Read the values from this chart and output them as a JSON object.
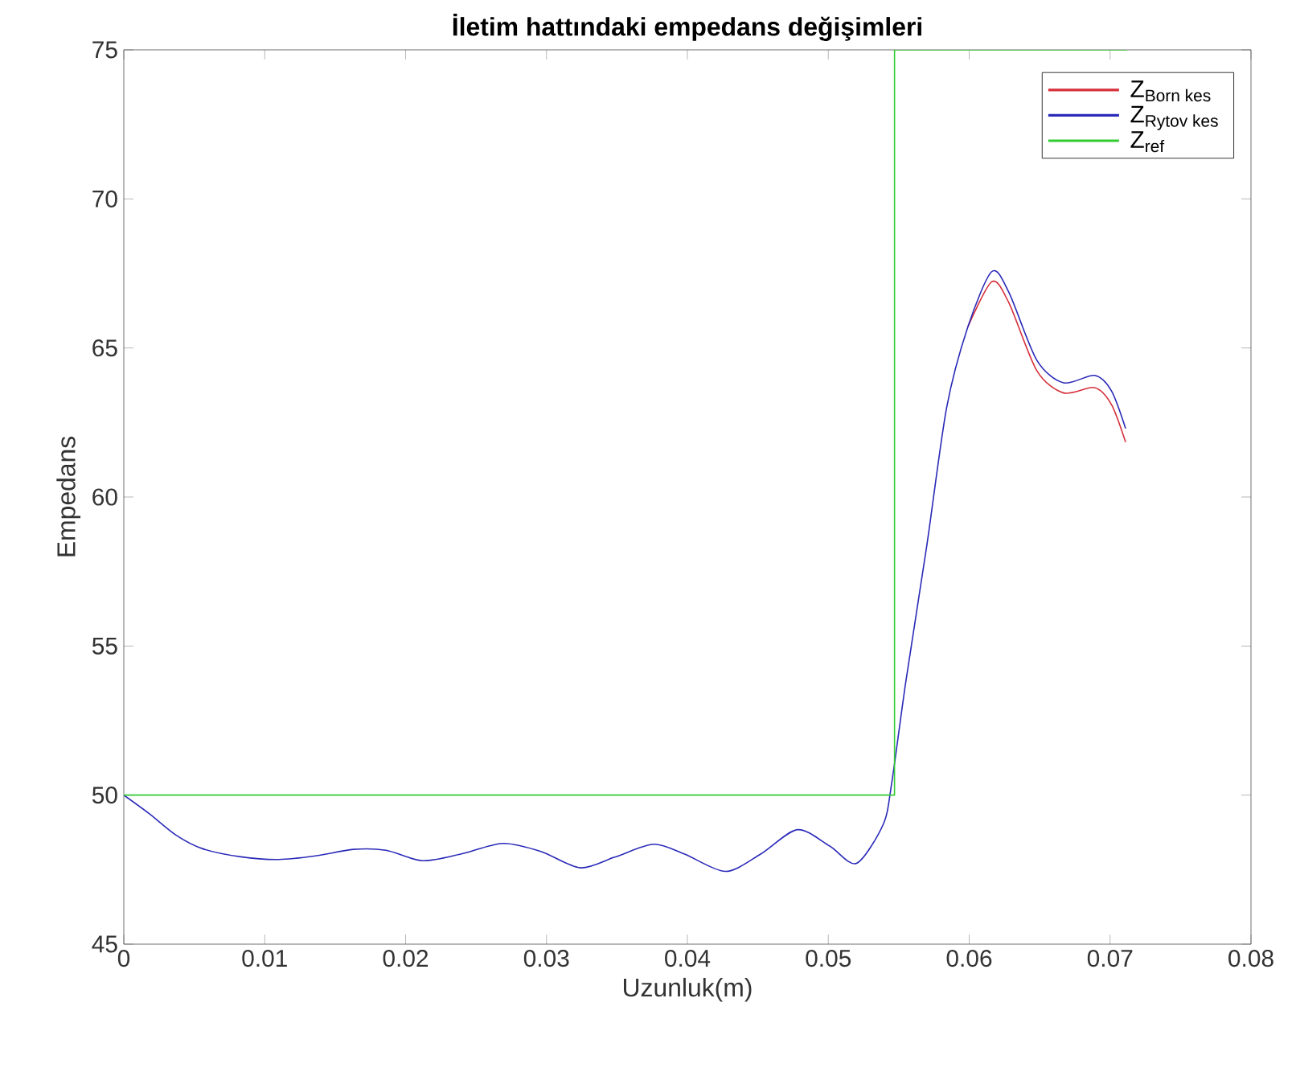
{
  "chart_data": {
    "type": "line",
    "title": "İletim hattındaki empedans değişimleri",
    "xlabel": "Uzunluk(m)",
    "ylabel": "Empedans",
    "xlim": [
      0,
      0.08
    ],
    "ylim": [
      45,
      75
    ],
    "xticks": [
      0,
      0.01,
      0.02,
      0.03,
      0.04,
      0.05,
      0.06,
      0.07,
      0.08
    ],
    "yticks": [
      45,
      50,
      55,
      60,
      65,
      70,
      75
    ],
    "legend": "top right",
    "line_style": "solid",
    "series": [
      {
        "name": "\\text{Z}_{\\text{Born kes}}",
        "color": "#d62f3a",
        "x": [
          0.0599,
          0.0616,
          0.0628,
          0.0648,
          0.0667,
          0.0689,
          0.0701,
          0.0711
        ],
        "values": [
          65.7,
          67.22,
          66.53,
          64.24,
          63.49,
          63.67,
          63.1,
          61.84
        ]
      },
      {
        "name": "\\text{Z}_{\\text{Rytov kes}}",
        "color": "#2a2ab8",
        "x": [
          0,
          0.0018,
          0.0037,
          0.0056,
          0.0083,
          0.011,
          0.0136,
          0.0163,
          0.0186,
          0.0212,
          0.0239,
          0.0269,
          0.0296,
          0.0324,
          0.0349,
          0.0376,
          0.0398,
          0.0427,
          0.0452,
          0.0478,
          0.0501,
          0.052,
          0.0539,
          0.0545,
          0.0555,
          0.057,
          0.0584,
          0.0599,
          0.0616,
          0.0628,
          0.0648,
          0.0667,
          0.0689,
          0.0701,
          0.0711
        ],
        "values": [
          50.0,
          49.38,
          48.66,
          48.2,
          47.93,
          47.84,
          47.96,
          48.18,
          48.15,
          47.8,
          48.02,
          48.38,
          48.11,
          47.56,
          47.93,
          48.35,
          48.02,
          47.44,
          48.02,
          48.84,
          48.29,
          47.71,
          49.02,
          50.4,
          53.8,
          58.4,
          63.0,
          65.7,
          67.56,
          66.88,
          64.59,
          63.83,
          64.08,
          63.56,
          62.3
        ]
      },
      {
        "name": "\\text{Z}_{\\text{ref}}",
        "color": "#33cc33",
        "x": [
          0,
          0.0547,
          0.0547,
          0.0712
        ],
        "values": [
          50,
          50,
          75,
          75
        ]
      }
    ]
  }
}
